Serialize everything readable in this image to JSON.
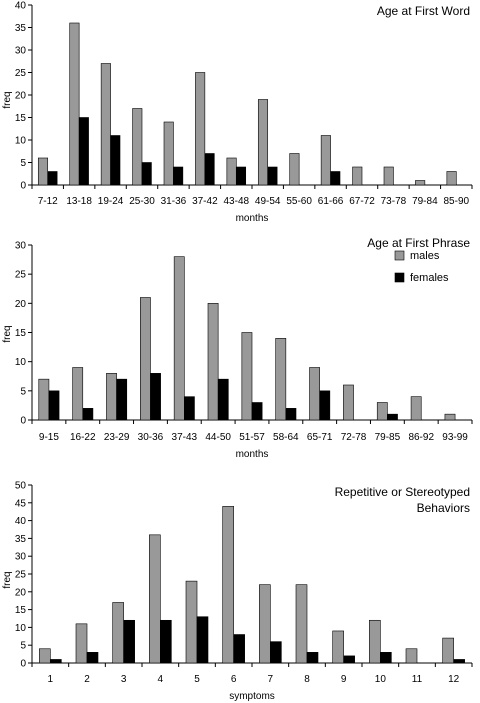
{
  "chart_data": [
    {
      "type": "bar",
      "title": "Age at First Word",
      "xlabel": "months",
      "ylabel": "freq",
      "ylim": [
        0,
        40
      ],
      "yticks": [
        0,
        5,
        10,
        15,
        20,
        25,
        30,
        35,
        40
      ],
      "legend": "none",
      "categories": [
        "7-12",
        "13-18",
        "19-24",
        "25-30",
        "31-36",
        "37-42",
        "43-48",
        "49-54",
        "55-60",
        "61-66",
        "67-72",
        "73-78",
        "79-84",
        "85-90"
      ],
      "series": [
        {
          "values": [
            6,
            36,
            27,
            17,
            14,
            25,
            6,
            19,
            7,
            11,
            4,
            4,
            1,
            3
          ],
          "color": "#999999"
        },
        {
          "values": [
            3,
            15,
            11,
            5,
            4,
            7,
            4,
            4,
            0,
            3,
            0,
            0,
            0,
            0
          ],
          "color": "#000000"
        }
      ]
    },
    {
      "type": "bar",
      "title": "Age at First Phrase",
      "xlabel": "months",
      "ylabel": "freq",
      "ylim": [
        0,
        30
      ],
      "yticks": [
        0,
        5,
        10,
        15,
        20,
        25,
        30
      ],
      "legend": "right",
      "categories": [
        "9-15",
        "16-22",
        "23-29",
        "30-36",
        "37-43",
        "44-50",
        "51-57",
        "58-64",
        "65-71",
        "72-78",
        "79-85",
        "86-92",
        "93-99"
      ],
      "series": [
        {
          "name": "males",
          "values": [
            7,
            9,
            8,
            21,
            28,
            20,
            15,
            14,
            9,
            6,
            3,
            4,
            1
          ],
          "color": "#999999"
        },
        {
          "name": "females",
          "values": [
            5,
            2,
            7,
            8,
            4,
            7,
            3,
            2,
            5,
            0,
            1,
            0,
            0
          ],
          "color": "#000000"
        }
      ]
    },
    {
      "type": "bar",
      "title": "Repetitive or  Stereotyped",
      "title_line2": "Behaviors",
      "xlabel": "symptoms",
      "ylabel": "freq",
      "ylim": [
        0,
        50
      ],
      "yticks": [
        0,
        5,
        10,
        15,
        20,
        25,
        30,
        35,
        40,
        45,
        50
      ],
      "legend": "none",
      "categories": [
        "1",
        "2",
        "3",
        "4",
        "5",
        "6",
        "7",
        "8",
        "9",
        "10",
        "11",
        "12"
      ],
      "series": [
        {
          "values": [
            4,
            11,
            17,
            36,
            23,
            44,
            22,
            22,
            9,
            12,
            4,
            7
          ],
          "color": "#999999"
        },
        {
          "values": [
            1,
            3,
            12,
            12,
            13,
            8,
            6,
            3,
            2,
            3,
            0,
            1
          ],
          "color": "#000000"
        }
      ]
    }
  ]
}
